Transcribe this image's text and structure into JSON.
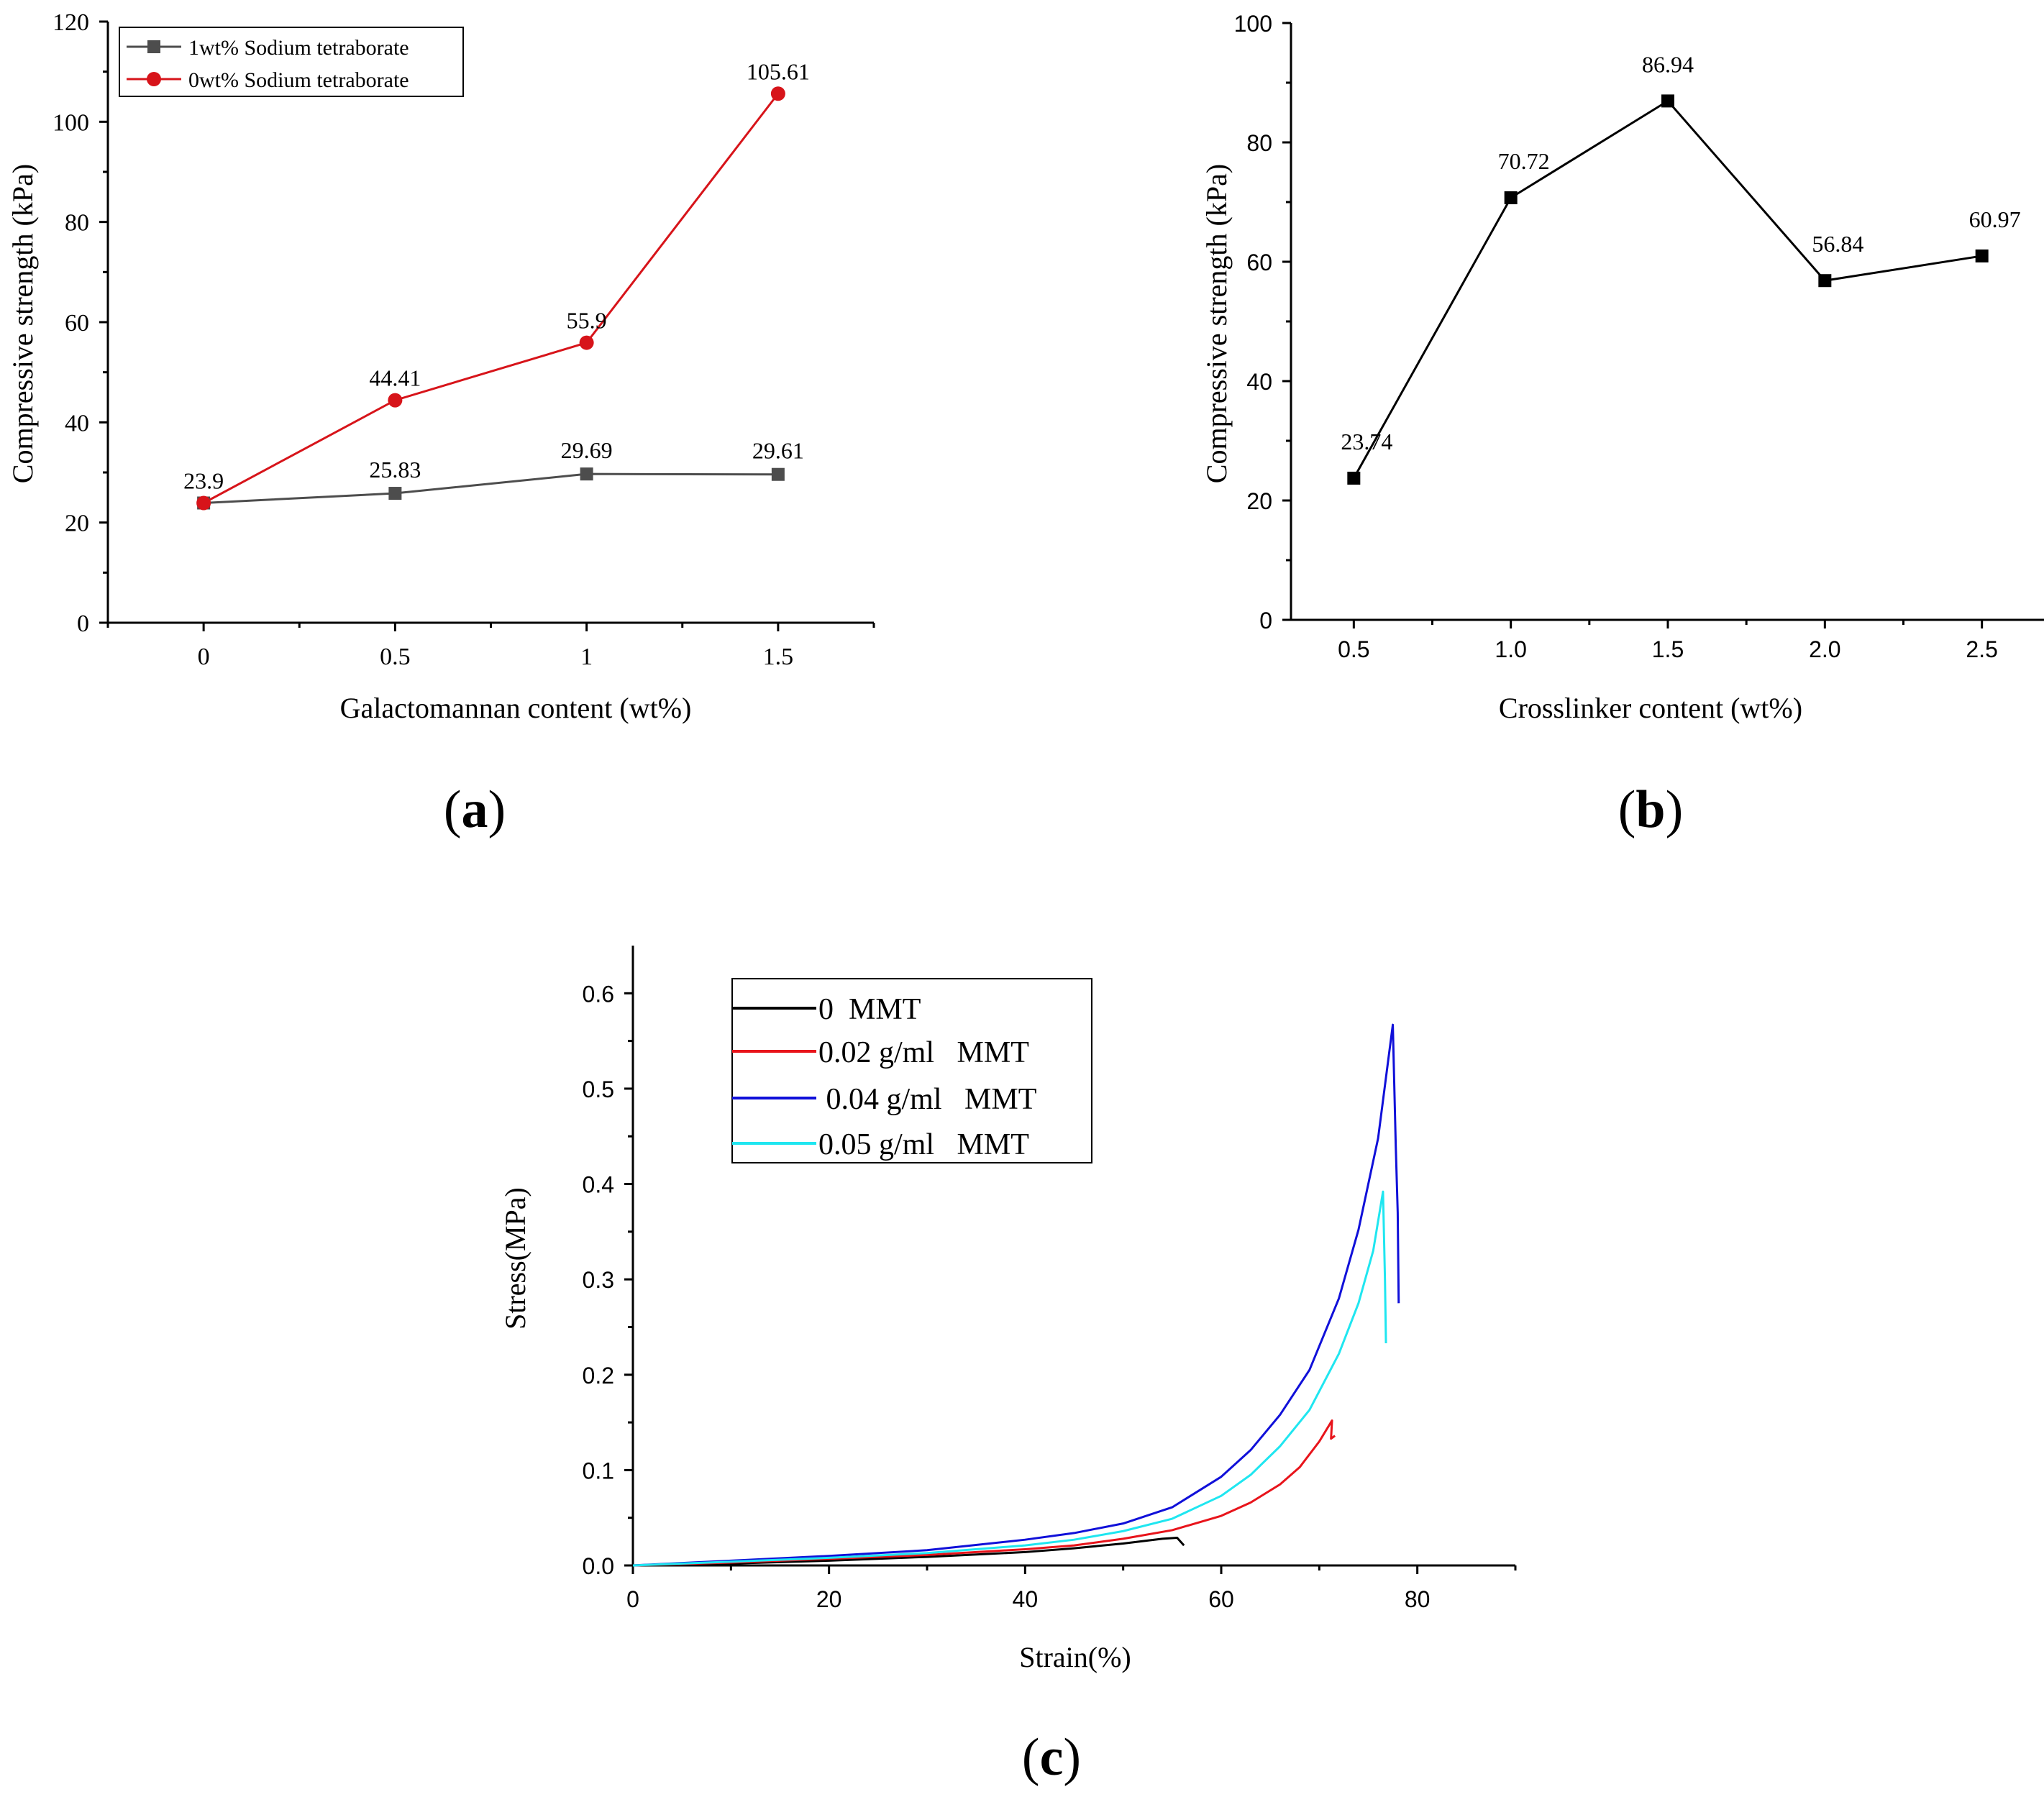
{
  "chart_data": [
    {
      "id": "a",
      "type": "line",
      "panel_label": "a",
      "xlabel": "Galactomannan content (wt%)",
      "ylabel": "Compressive strength (kPa)",
      "xlim": [
        -0.25,
        1.75
      ],
      "ylim": [
        0,
        120
      ],
      "xticks": [
        0,
        0.5,
        1,
        1.5
      ],
      "xtick_labels": [
        "0",
        "0.5",
        "1",
        "1.5"
      ],
      "yticks": [
        0,
        20,
        40,
        60,
        80,
        100,
        120
      ],
      "ytick_labels": [
        "0",
        "20",
        "40",
        "60",
        "80",
        "100",
        "120"
      ],
      "legend_position": "top-left",
      "series": [
        {
          "name": "1wt% Sodium tetraborate",
          "color": "#4d4d4d",
          "marker": "square",
          "x": [
            0,
            0.5,
            1,
            1.5
          ],
          "values": [
            23.9,
            25.83,
            29.69,
            29.61
          ],
          "labels": [
            "",
            "25.83",
            "29.69",
            "29.61"
          ]
        },
        {
          "name": "0wt% Sodium tetraborate",
          "color": "#d7141a",
          "marker": "circle",
          "x": [
            0,
            0.5,
            1,
            1.5
          ],
          "values": [
            23.9,
            44.41,
            55.9,
            105.61
          ],
          "labels": [
            "23.9",
            "44.41",
            "55.9",
            "105.61"
          ]
        }
      ]
    },
    {
      "id": "b",
      "type": "line",
      "panel_label": "b",
      "xlabel": "Crosslinker content (wt%)",
      "ylabel": "Compressive strength (kPa)",
      "xlim": [
        0.3,
        2.7
      ],
      "ylim": [
        0,
        100
      ],
      "xticks": [
        0.5,
        1.0,
        1.5,
        2.0,
        2.5
      ],
      "xtick_labels": [
        "0.5",
        "1.0",
        "1.5",
        "2.0",
        "2.5"
      ],
      "yticks": [
        0,
        20,
        40,
        60,
        80,
        100
      ],
      "ytick_labels": [
        "0",
        "20",
        "40",
        "60",
        "80",
        "100"
      ],
      "series": [
        {
          "name": "Compressive strength",
          "color": "#000000",
          "marker": "square",
          "x": [
            0.5,
            1.0,
            1.5,
            2.0,
            2.5
          ],
          "values": [
            23.74,
            70.72,
            86.94,
            56.84,
            60.97
          ],
          "labels": [
            "23.74",
            "70.72",
            "86.94",
            "56.84",
            "60.97"
          ]
        }
      ]
    },
    {
      "id": "c",
      "type": "line",
      "panel_label": "c",
      "xlabel": "Strain(%)",
      "ylabel": "Stress(MPa)",
      "xlim": [
        0,
        90
      ],
      "ylim": [
        0,
        0.65
      ],
      "xticks": [
        0,
        20,
        40,
        60,
        80
      ],
      "xtick_labels": [
        "0",
        "20",
        "40",
        "60",
        "80"
      ],
      "yticks": [
        0,
        0.1,
        0.2,
        0.3,
        0.4,
        0.5,
        0.6
      ],
      "ytick_labels": [
        "0.0",
        "0.1",
        "0.2",
        "0.3",
        "0.4",
        "0.5",
        "0.6"
      ],
      "legend_position": "top-left",
      "series": [
        {
          "name": "0  MMT",
          "color": "#000000",
          "x": [
            0,
            10,
            20,
            30,
            40,
            45,
            50,
            54,
            55.5,
            56.2
          ],
          "values": [
            0,
            0.002,
            0.005,
            0.009,
            0.014,
            0.018,
            0.023,
            0.028,
            0.029,
            0.021
          ]
        },
        {
          "name": "0.02 g/ml   MMT",
          "color": "#e8141b",
          "x": [
            0,
            10,
            20,
            30,
            40,
            45,
            50,
            55,
            60,
            63,
            66,
            68,
            70,
            71.3,
            71.2,
            71.6
          ],
          "values": [
            0,
            0.003,
            0.007,
            0.011,
            0.017,
            0.021,
            0.028,
            0.037,
            0.052,
            0.066,
            0.085,
            0.103,
            0.13,
            0.152,
            0.133,
            0.136
          ]
        },
        {
          "name": " 0.04 g/ml   MMT",
          "color": "#1010d9",
          "x": [
            0,
            10,
            20,
            30,
            40,
            45,
            50,
            55,
            60,
            63,
            66,
            69,
            72,
            74,
            76,
            77.5,
            77.8,
            78.0,
            78.1
          ],
          "values": [
            0,
            0.005,
            0.01,
            0.016,
            0.027,
            0.034,
            0.044,
            0.061,
            0.093,
            0.121,
            0.158,
            0.205,
            0.28,
            0.352,
            0.448,
            0.567,
            0.44,
            0.37,
            0.275
          ]
        },
        {
          "name": "0.05 g/ml   MMT",
          "color": "#1fe6f0",
          "x": [
            0,
            10,
            20,
            30,
            40,
            45,
            50,
            55,
            60,
            63,
            66,
            69,
            72,
            74,
            75.5,
            76.5,
            76.7,
            76.8
          ],
          "values": [
            0,
            0.004,
            0.008,
            0.013,
            0.021,
            0.027,
            0.036,
            0.049,
            0.073,
            0.095,
            0.125,
            0.163,
            0.222,
            0.275,
            0.33,
            0.392,
            0.3,
            0.233
          ]
        }
      ]
    }
  ]
}
